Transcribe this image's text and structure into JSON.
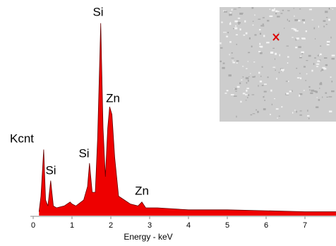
{
  "chart_data": {
    "type": "area",
    "ylabel": "Kcnt",
    "xlabel": "Energy - keV",
    "x": [
      0.15,
      0.2,
      0.27,
      0.32,
      0.38,
      0.45,
      0.52,
      0.6,
      0.8,
      0.95,
      1.0,
      1.1,
      1.3,
      1.4,
      1.45,
      1.52,
      1.6,
      1.66,
      1.74,
      1.8,
      1.86,
      1.92,
      1.97,
      2.03,
      2.1,
      2.2,
      2.35,
      2.5,
      2.7,
      2.8,
      2.9,
      3.2,
      4,
      5,
      6,
      7,
      7.8
    ],
    "values": [
      2,
      10,
      34,
      8,
      5,
      18,
      5,
      4,
      5,
      7,
      6,
      5,
      8,
      15,
      27,
      12,
      12,
      40,
      99,
      45,
      20,
      45,
      56,
      52,
      30,
      10,
      8,
      6,
      5,
      7,
      4,
      4,
      3,
      3,
      2.5,
      2,
      2
    ],
    "color": "#ee0000",
    "xlim": [
      0,
      7.8
    ],
    "ylim": [
      0,
      100
    ],
    "xticks": [
      0,
      1,
      2,
      3,
      4,
      5,
      6,
      7
    ],
    "annotations": [
      "Si",
      "Zn",
      "Si",
      "Si",
      "Zn"
    ]
  }
}
